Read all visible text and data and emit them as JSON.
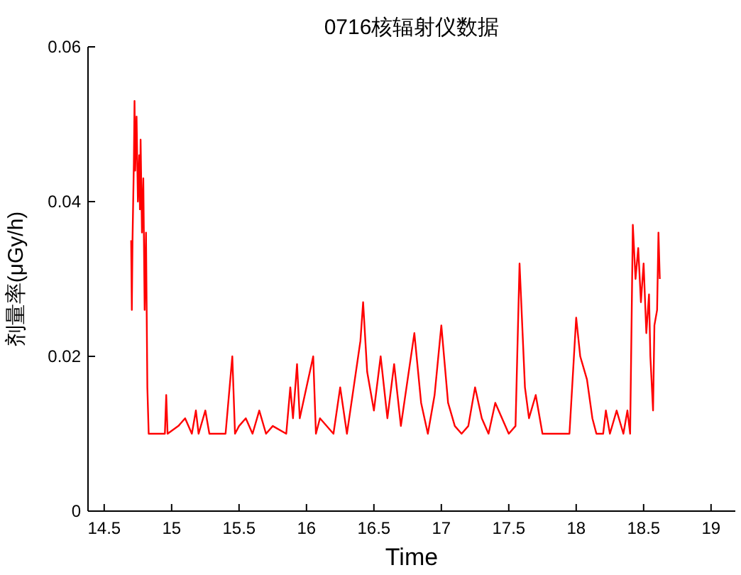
{
  "chart_data": {
    "type": "line",
    "title": "0716核辐射仪数据",
    "xlabel": "Time",
    "ylabel": "剂量率(μGy/h)",
    "xlim": [
      14.38,
      19.18
    ],
    "xticks": [
      14.5,
      15,
      15.5,
      16,
      16.5,
      17,
      17.5,
      18,
      18.5,
      19
    ],
    "ylim": [
      0,
      0.06
    ],
    "yticks": [
      0,
      0.02,
      0.04,
      0.06
    ],
    "series": [
      {
        "color": "#ff0000",
        "x": [
          14.7,
          14.705,
          14.71,
          14.72,
          14.725,
          14.73,
          14.74,
          14.75,
          14.76,
          14.765,
          14.77,
          14.78,
          14.79,
          14.8,
          14.81,
          14.82,
          14.83,
          14.95,
          14.96,
          14.97,
          15.05,
          15.1,
          15.15,
          15.18,
          15.2,
          15.25,
          15.28,
          15.4,
          15.45,
          15.47,
          15.5,
          15.55,
          15.6,
          15.65,
          15.7,
          15.75,
          15.85,
          15.88,
          15.9,
          15.93,
          15.95,
          16.0,
          16.05,
          16.07,
          16.1,
          16.2,
          16.25,
          16.3,
          16.35,
          16.4,
          16.42,
          16.45,
          16.5,
          16.55,
          16.6,
          16.65,
          16.7,
          16.75,
          16.8,
          16.85,
          16.9,
          16.95,
          17.0,
          17.05,
          17.1,
          17.15,
          17.2,
          17.25,
          17.3,
          17.35,
          17.4,
          17.45,
          17.5,
          17.55,
          17.58,
          17.62,
          17.65,
          17.7,
          17.75,
          17.8,
          17.95,
          18.0,
          18.03,
          18.08,
          18.12,
          18.15,
          18.2,
          18.22,
          18.25,
          18.3,
          18.35,
          18.38,
          18.4,
          18.42,
          18.44,
          18.46,
          18.48,
          18.5,
          18.52,
          18.54,
          18.55,
          18.57,
          18.58,
          18.6,
          18.61,
          18.62
        ],
        "values": [
          0.035,
          0.026,
          0.035,
          0.045,
          0.053,
          0.044,
          0.051,
          0.04,
          0.046,
          0.039,
          0.048,
          0.036,
          0.043,
          0.026,
          0.036,
          0.016,
          0.01,
          0.01,
          0.015,
          0.01,
          0.011,
          0.012,
          0.01,
          0.013,
          0.01,
          0.013,
          0.01,
          0.01,
          0.02,
          0.01,
          0.011,
          0.012,
          0.01,
          0.013,
          0.01,
          0.011,
          0.01,
          0.016,
          0.012,
          0.019,
          0.012,
          0.016,
          0.02,
          0.01,
          0.012,
          0.01,
          0.016,
          0.01,
          0.016,
          0.022,
          0.027,
          0.018,
          0.013,
          0.02,
          0.012,
          0.019,
          0.011,
          0.017,
          0.023,
          0.014,
          0.01,
          0.015,
          0.024,
          0.014,
          0.011,
          0.01,
          0.011,
          0.016,
          0.012,
          0.01,
          0.014,
          0.012,
          0.01,
          0.011,
          0.032,
          0.016,
          0.012,
          0.015,
          0.01,
          0.01,
          0.01,
          0.025,
          0.02,
          0.017,
          0.012,
          0.01,
          0.01,
          0.013,
          0.01,
          0.013,
          0.01,
          0.013,
          0.01,
          0.037,
          0.03,
          0.034,
          0.027,
          0.032,
          0.023,
          0.028,
          0.02,
          0.013,
          0.024,
          0.026,
          0.036,
          0.03
        ]
      }
    ]
  }
}
